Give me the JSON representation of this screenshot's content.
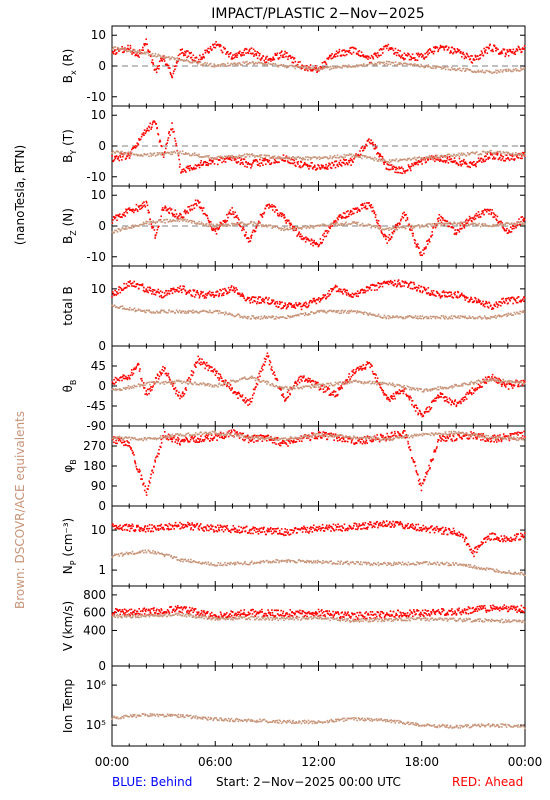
{
  "title": "IMPACT/PLASTIC     2−Nov−2025",
  "left_label_top": "(nanoTesla, RTN)",
  "left_label_bottom": "Brown: DSCOVR/ACE equivalents",
  "footer": {
    "blue": "BLUE: Behind",
    "start": "Start:   2−Nov−2025 00:00 UTC",
    "red": "RED: Ahead"
  },
  "colors": {
    "ahead": "#ff0000",
    "brown": "#c8957a",
    "blue": "#0000ff",
    "zero_line": "#808080"
  },
  "chart_data": {
    "type": "scatter",
    "x_ticks": [
      "00:00",
      "06:00",
      "12:00",
      "18:00",
      "00:00"
    ],
    "x_range_hours": [
      0,
      24
    ],
    "panels": [
      {
        "id": "bx",
        "ylabel_main": "B",
        "ylabel_sub": "x",
        "ylabel_suffix": "(R)",
        "ylim": [
          -13,
          13
        ],
        "yticks": [
          10,
          0,
          -10
        ],
        "zero_line": true,
        "log": false,
        "series": [
          {
            "color_key": "ahead",
            "x": [
              0,
              1,
              1.5,
              2,
              2.5,
              3,
              3.5,
              4,
              5,
              6,
              7,
              8,
              9,
              10,
              11,
              12,
              13,
              14,
              15,
              16,
              17,
              18,
              19,
              20,
              21,
              22,
              23,
              24
            ],
            "y": [
              4,
              6,
              3,
              8,
              -2,
              3,
              -3,
              5,
              2,
              7,
              3,
              5,
              2,
              4,
              0,
              -1,
              4,
              5,
              2,
              6,
              3,
              3,
              6,
              5,
              2,
              6,
              4,
              6
            ]
          },
          {
            "color_key": "brown",
            "x": [
              0,
              2,
              4,
              6,
              8,
              10,
              12,
              14,
              16,
              18,
              20,
              22,
              24
            ],
            "y": [
              6,
              4,
              2,
              0,
              1,
              0,
              -1,
              0,
              1,
              0,
              -1,
              -2,
              -1
            ]
          }
        ]
      },
      {
        "id": "by",
        "ylabel_main": "B",
        "ylabel_sub": "Y",
        "ylabel_suffix": "(T)",
        "ylim": [
          -13,
          13
        ],
        "yticks": [
          10,
          0,
          -10
        ],
        "zero_line": true,
        "log": false,
        "series": [
          {
            "color_key": "ahead",
            "x": [
              0,
              1,
              2,
              2.5,
              3,
              3.5,
              4,
              5,
              6,
              7,
              8,
              9,
              10,
              11,
              12,
              13,
              14,
              15,
              16,
              17,
              18,
              19,
              20,
              21,
              22,
              23,
              24
            ],
            "y": [
              -4,
              -3,
              5,
              8,
              -3,
              7,
              -8,
              -6,
              -5,
              -4,
              -6,
              -5,
              -4,
              -6,
              -7,
              -6,
              -5,
              2,
              -7,
              -8,
              -5,
              -4,
              -5,
              -6,
              -3,
              -4,
              -3
            ]
          },
          {
            "color_key": "brown",
            "x": [
              0,
              2,
              4,
              6,
              8,
              10,
              12,
              14,
              16,
              18,
              20,
              22,
              24
            ],
            "y": [
              -2,
              -3,
              -2,
              -4,
              -3,
              -4,
              -4,
              -3,
              -5,
              -4,
              -3,
              -2,
              -3
            ]
          }
        ]
      },
      {
        "id": "bz",
        "ylabel_main": "B",
        "ylabel_sub": "Z",
        "ylabel_suffix": "(N)",
        "ylim": [
          -13,
          13
        ],
        "yticks": [
          10,
          0,
          -10
        ],
        "zero_line": true,
        "log": false,
        "series": [
          {
            "color_key": "ahead",
            "x": [
              0,
              1,
              2,
              2.5,
              3,
              4,
              5,
              6,
              7,
              8,
              9,
              10,
              11,
              12,
              13,
              14,
              15,
              16,
              17,
              18,
              19,
              20,
              21,
              22,
              23,
              24
            ],
            "y": [
              2,
              5,
              7,
              -3,
              6,
              3,
              8,
              -2,
              5,
              -5,
              7,
              3,
              -4,
              -6,
              2,
              5,
              7,
              -5,
              4,
              -10,
              3,
              -2,
              3,
              5,
              -2,
              3
            ]
          },
          {
            "color_key": "brown",
            "x": [
              0,
              2,
              4,
              6,
              8,
              10,
              12,
              14,
              16,
              18,
              20,
              22,
              24
            ],
            "y": [
              -2,
              1,
              2,
              0,
              1,
              -1,
              0,
              1,
              -1,
              0,
              1,
              0,
              1
            ]
          }
        ]
      },
      {
        "id": "btotal",
        "ylabel_main": "total B",
        "ylabel_sub": "",
        "ylabel_suffix": "",
        "ylim": [
          0,
          14
        ],
        "yticks": [
          10,
          0
        ],
        "zero_line": false,
        "log": false,
        "series": [
          {
            "color_key": "ahead",
            "x": [
              0,
              1,
              2,
              3,
              4,
              5,
              6,
              7,
              8,
              9,
              10,
              11,
              12,
              13,
              14,
              15,
              16,
              17,
              18,
              19,
              20,
              21,
              22,
              23,
              24
            ],
            "y": [
              9,
              11,
              10,
              9,
              10,
              9,
              9,
              10,
              8,
              8,
              7,
              7,
              8,
              10,
              9,
              10,
              11,
              11,
              10,
              9,
              9,
              8,
              7,
              8,
              8
            ]
          },
          {
            "color_key": "brown",
            "x": [
              0,
              2,
              4,
              6,
              8,
              10,
              12,
              14,
              16,
              18,
              20,
              22,
              24
            ],
            "y": [
              7,
              6,
              6,
              6,
              5,
              5,
              6,
              6,
              5,
              5,
              5,
              5,
              6
            ]
          }
        ]
      },
      {
        "id": "theta",
        "ylabel_main": "θ",
        "ylabel_sub": "B",
        "ylabel_suffix": "",
        "ylim": [
          -90,
          90
        ],
        "yticks": [
          45,
          0,
          -45,
          -90
        ],
        "zero_line": false,
        "log": false,
        "series": [
          {
            "color_key": "ahead",
            "x": [
              0,
              1,
              1.5,
              2,
              3,
              4,
              5,
              6,
              7,
              8,
              9,
              10,
              11,
              12,
              13,
              14,
              15,
              16,
              17,
              18,
              19,
              20,
              21,
              22,
              23,
              24
            ],
            "y": [
              10,
              20,
              50,
              -20,
              40,
              -30,
              60,
              30,
              -10,
              -40,
              70,
              -30,
              20,
              0,
              -20,
              30,
              50,
              -30,
              -10,
              -70,
              -20,
              -40,
              -10,
              20,
              0,
              10
            ]
          },
          {
            "color_key": "brown",
            "x": [
              0,
              2,
              4,
              6,
              8,
              10,
              12,
              14,
              16,
              18,
              20,
              22,
              24
            ],
            "y": [
              -10,
              5,
              10,
              0,
              20,
              -5,
              0,
              10,
              5,
              -10,
              0,
              15,
              5
            ]
          }
        ]
      },
      {
        "id": "phi",
        "ylabel_main": "φ",
        "ylabel_sub": "B",
        "ylabel_suffix": "",
        "ylim": [
          0,
          360
        ],
        "yticks": [
          270,
          180,
          90,
          0
        ],
        "zero_line": false,
        "log": false,
        "series": [
          {
            "color_key": "ahead",
            "x": [
              0,
              1,
              2,
              3,
              4,
              5,
              6,
              7,
              8,
              9,
              10,
              11,
              12,
              13,
              14,
              15,
              16,
              17,
              18,
              19,
              20,
              21,
              22,
              23,
              24
            ],
            "y": [
              300,
              280,
              60,
              320,
              290,
              300,
              310,
              330,
              300,
              310,
              280,
              300,
              320,
              310,
              290,
              300,
              310,
              330,
              80,
              300,
              310,
              320,
              300,
              310,
              320
            ]
          },
          {
            "color_key": "brown",
            "x": [
              0,
              2,
              4,
              6,
              8,
              10,
              12,
              14,
              16,
              18,
              20,
              22,
              24
            ],
            "y": [
              310,
              300,
              320,
              330,
              310,
              300,
              320,
              310,
              300,
              320,
              330,
              310,
              300
            ]
          }
        ]
      },
      {
        "id": "np",
        "ylabel_main": "N",
        "ylabel_sub": "P",
        "ylabel_suffix": "(cm⁻³)",
        "ylim": [
          0.4,
          40
        ],
        "yticks": [
          10,
          1
        ],
        "zero_line": false,
        "log": true,
        "series": [
          {
            "color_key": "ahead",
            "x": [
              0,
              2,
              4,
              6,
              8,
              10,
              12,
              14,
              16,
              17,
              18,
              19,
              20,
              21,
              22,
              23,
              24
            ],
            "y": [
              12,
              11,
              13,
              11,
              10,
              9,
              11,
              12,
              14,
              13,
              11,
              10,
              9,
              2.5,
              7,
              6,
              7
            ]
          },
          {
            "color_key": "brown",
            "x": [
              0,
              2,
              4,
              6,
              8,
              10,
              12,
              14,
              16,
              18,
              20,
              22,
              24
            ],
            "y": [
              2.2,
              3,
              1.8,
              1.4,
              1.5,
              1.7,
              1.6,
              1.5,
              1.4,
              1.5,
              1.4,
              1.0,
              0.8
            ]
          }
        ]
      },
      {
        "id": "v",
        "ylabel_main": "V (km/s)",
        "ylabel_sub": "",
        "ylabel_suffix": "",
        "ylim": [
          0,
          900
        ],
        "yticks": [
          800,
          600,
          400,
          0
        ],
        "zero_line": false,
        "log": false,
        "series": [
          {
            "color_key": "ahead",
            "x": [
              0,
              2,
              4,
              6,
              8,
              10,
              12,
              14,
              16,
              18,
              20,
              22,
              24
            ],
            "y": [
              610,
              610,
              640,
              560,
              600,
              590,
              600,
              560,
              580,
              600,
              610,
              650,
              640
            ]
          },
          {
            "color_key": "brown",
            "x": [
              0,
              2,
              4,
              6,
              8,
              10,
              12,
              14,
              16,
              18,
              20,
              22,
              24
            ],
            "y": [
              560,
              560,
              580,
              530,
              540,
              530,
              540,
              510,
              520,
              530,
              520,
              510,
              500
            ]
          }
        ]
      },
      {
        "id": "temp",
        "ylabel_main": "Ion Temp",
        "ylabel_sub": "",
        "ylabel_suffix": "",
        "ylim": [
          30000,
          3000000
        ],
        "yticks": [
          1000000,
          100000
        ],
        "ytick_labels": [
          "10⁶",
          "10⁵"
        ],
        "zero_line": false,
        "log": true,
        "series": [
          {
            "color_key": "brown",
            "x": [
              0,
              2,
              4,
              6,
              8,
              10,
              12,
              14,
              16,
              18,
              20,
              22,
              24
            ],
            "y": [
              150000,
              180000,
              170000,
              140000,
              130000,
              120000,
              120000,
              140000,
              130000,
              100000,
              90000,
              100000,
              90000
            ]
          }
        ]
      }
    ]
  }
}
